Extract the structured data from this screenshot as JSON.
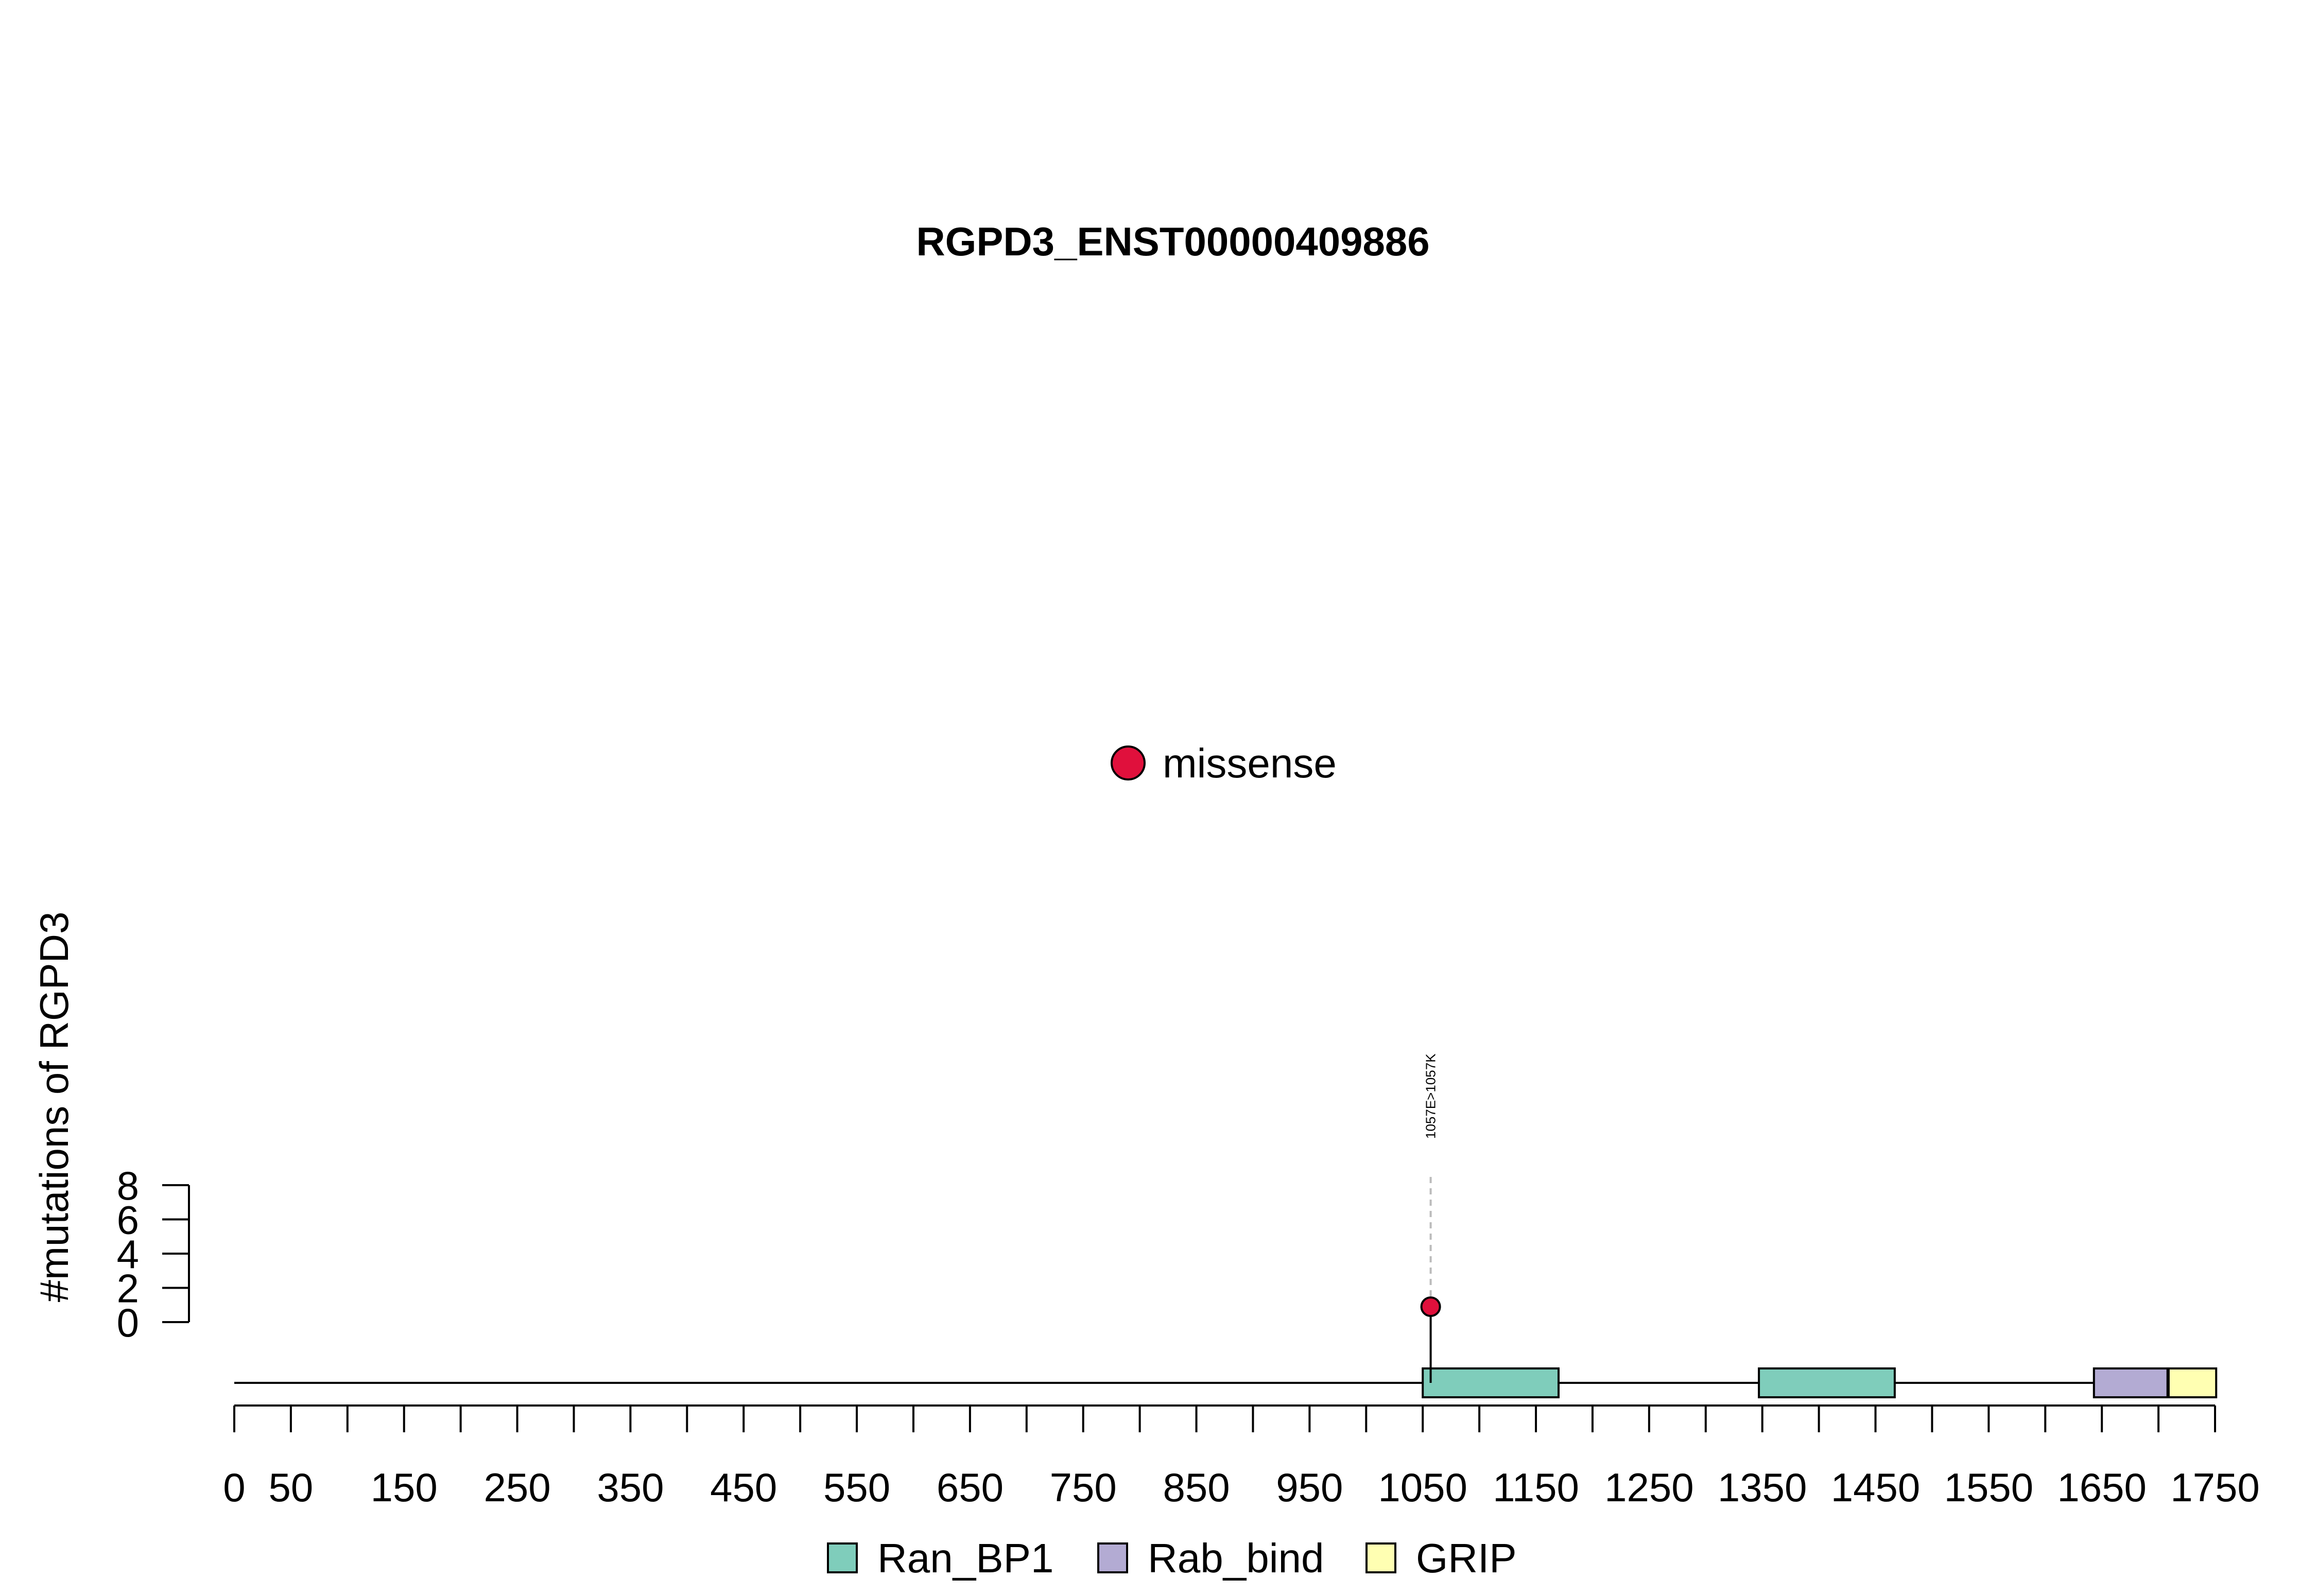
{
  "chart_data": {
    "type": "lollipop",
    "title": "RGPD3_ENST00000409886",
    "ylabel": "#mutations of RGPD3",
    "xlim": [
      0,
      1750
    ],
    "x_ticks": [
      0,
      50,
      100,
      150,
      200,
      250,
      300,
      350,
      400,
      450,
      500,
      550,
      600,
      650,
      700,
      750,
      800,
      850,
      900,
      950,
      1000,
      1050,
      1100,
      1150,
      1200,
      1250,
      1300,
      1350,
      1400,
      1450,
      1500,
      1550,
      1600,
      1650,
      1700,
      1750
    ],
    "x_tick_labels": [
      "0",
      "50",
      "150",
      "250",
      "350",
      "450",
      "550",
      "650",
      "750",
      "850",
      "950",
      "1050",
      "1150",
      "1250",
      "1350",
      "1450",
      "1550",
      "1650",
      "1750"
    ],
    "ylim": [
      0,
      8
    ],
    "y_tick_labels": [
      "0",
      "2",
      "4",
      "6",
      "8"
    ],
    "mutation_types": [
      {
        "name": "missense",
        "color": "#E0103C"
      }
    ],
    "mutations": [
      {
        "position": 1057,
        "count": 1,
        "type": "missense",
        "label": "1057E>1057K"
      }
    ],
    "domains": [
      {
        "name": "Ran_BP1",
        "start": 1050,
        "end": 1170,
        "color": "#7FCDBB"
      },
      {
        "name": "Ran_BP1",
        "start": 1347,
        "end": 1467,
        "color": "#7FCDBB"
      },
      {
        "name": "Rab_bind",
        "start": 1643,
        "end": 1708,
        "color": "#B3ABD3"
      },
      {
        "name": "GRIP",
        "start": 1709,
        "end": 1751,
        "color": "#FFFFB2"
      }
    ],
    "legend": [
      {
        "name": "Ran_BP1",
        "color": "#7FCDBB"
      },
      {
        "name": "Rab_bind",
        "color": "#B3ABD3"
      },
      {
        "name": "GRIP",
        "color": "#FFFFB2"
      }
    ]
  }
}
